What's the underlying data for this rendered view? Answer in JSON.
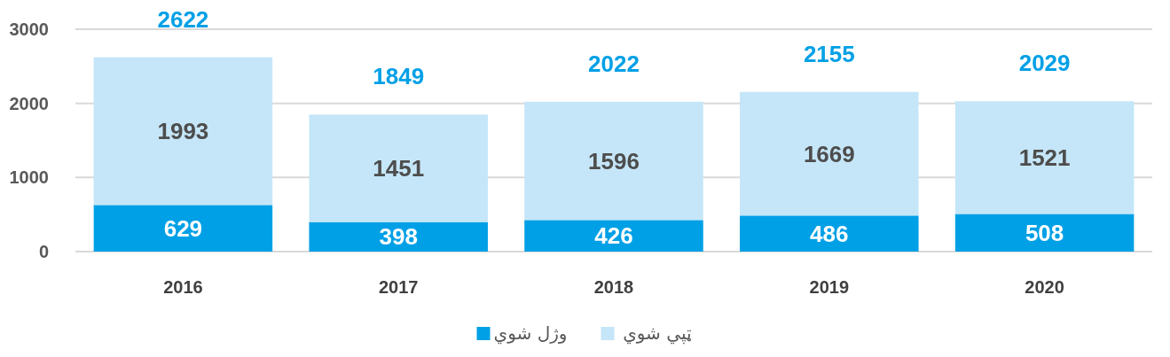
{
  "chart_data": {
    "type": "bar",
    "stacked": true,
    "categories": [
      "2016",
      "2017",
      "2018",
      "2019",
      "2020"
    ],
    "series": [
      {
        "name": "وژل شوي",
        "color": "#00a0e6",
        "values": [
          629,
          398,
          426,
          486,
          508
        ]
      },
      {
        "name": "ټپي شوي",
        "color": "#c5e6f8",
        "values": [
          1993,
          1451,
          1596,
          1669,
          1521
        ]
      }
    ],
    "ylim": [
      0,
      3000
    ],
    "yticks": [
      0,
      1000,
      2000,
      3000
    ],
    "grid": "y",
    "data_labels": true,
    "totals": [
      "2622",
      "1849",
      "2022",
      "2155",
      "2029"
    ],
    "legend": "bottom"
  }
}
